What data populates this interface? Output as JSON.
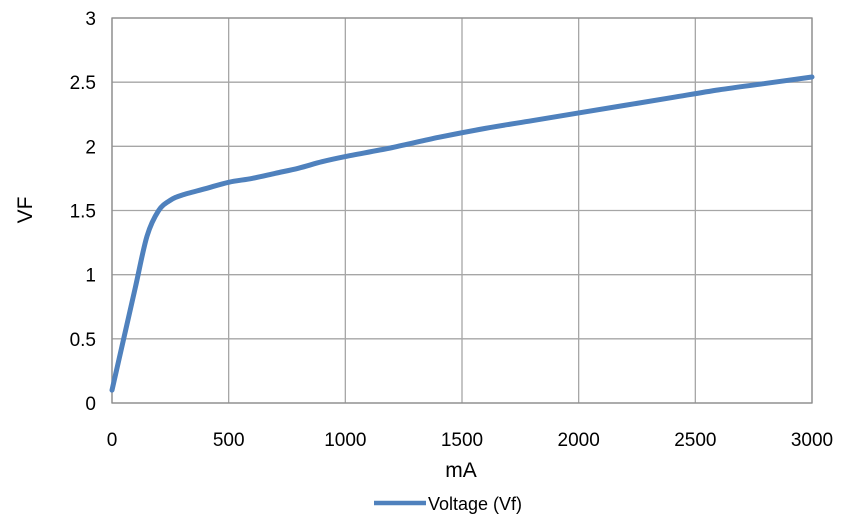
{
  "chart_data": {
    "type": "line",
    "title": "",
    "xlabel": "mA",
    "ylabel": "VF",
    "xlim": [
      0,
      3000
    ],
    "ylim": [
      0,
      3
    ],
    "xticks": [
      0,
      500,
      1000,
      1500,
      2000,
      2500,
      3000
    ],
    "yticks": [
      0,
      0.5,
      1,
      1.5,
      2,
      2.5,
      3
    ],
    "grid": true,
    "legend_position": "bottom",
    "series": [
      {
        "name": "Voltage (Vf)",
        "color": "#4f81bd",
        "x": [
          0,
          50,
          100,
          150,
          200,
          250,
          300,
          400,
          500,
          600,
          700,
          800,
          900,
          1000,
          1200,
          1400,
          1600,
          1800,
          2000,
          2200,
          2400,
          2600,
          2800,
          3000
        ],
        "y": [
          0.1,
          0.5,
          0.9,
          1.3,
          1.5,
          1.58,
          1.62,
          1.67,
          1.72,
          1.75,
          1.79,
          1.83,
          1.88,
          1.92,
          1.99,
          2.07,
          2.14,
          2.2,
          2.26,
          2.32,
          2.38,
          2.44,
          2.49,
          2.54
        ]
      }
    ]
  }
}
